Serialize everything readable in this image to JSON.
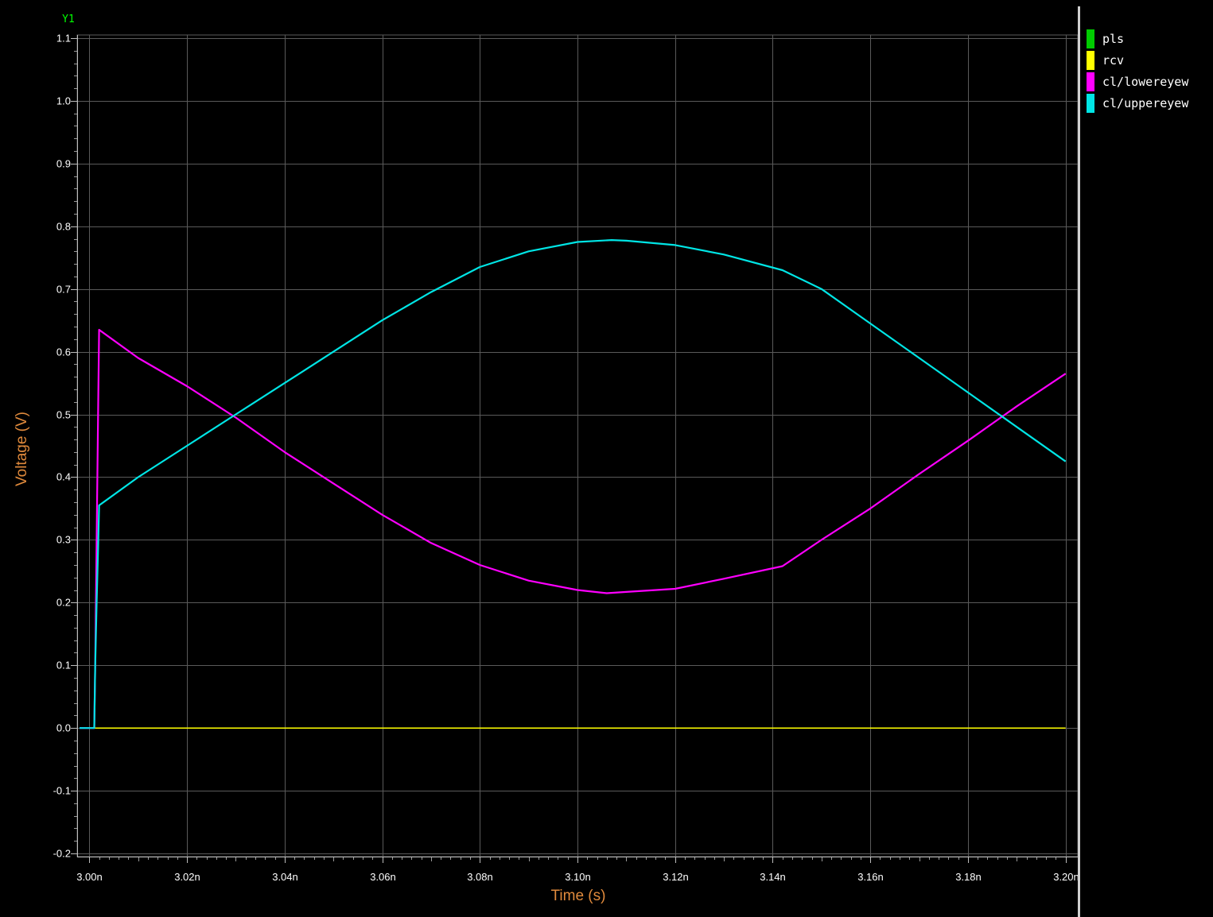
{
  "chart_data": {
    "type": "line",
    "axis_tag": "Y1",
    "xlabel": "Time (s)",
    "ylabel": "Voltage (V)",
    "xlim": [
      2.9975,
      3.2025
    ],
    "ylim": [
      -0.205,
      1.105
    ],
    "x_unit_suffix": "n",
    "x_ticks": [
      3.0,
      3.02,
      3.04,
      3.06,
      3.08,
      3.1,
      3.12,
      3.14,
      3.16,
      3.18,
      3.2
    ],
    "x_tick_labels": [
      "3.00n",
      "3.02n",
      "3.04n",
      "3.06n",
      "3.08n",
      "3.10n",
      "3.12n",
      "3.14n",
      "3.16n",
      "3.18n",
      "3.20n"
    ],
    "y_ticks": [
      -0.2,
      -0.1,
      0.0,
      0.1,
      0.2,
      0.3,
      0.4,
      0.5,
      0.6,
      0.7,
      0.8,
      0.9,
      1.0,
      1.1
    ],
    "y_tick_labels": [
      "-0.2",
      "-0.1",
      "0.0",
      "0.1",
      "0.2",
      "0.3",
      "0.4",
      "0.5",
      "0.6",
      "0.7",
      "0.8",
      "0.9",
      "1.0",
      "1.1"
    ],
    "grid": true,
    "legend_position": "right",
    "series": [
      {
        "name": "pls",
        "color": "#00cc00",
        "x": [],
        "y": []
      },
      {
        "name": "rcv",
        "color": "#ffff00",
        "x": [
          2.998,
          3.2
        ],
        "y": [
          0.0,
          0.0
        ]
      },
      {
        "name": "cl/lowereyew",
        "color": "#ff00ff",
        "x": [
          2.998,
          3.001,
          3.0012,
          3.0015,
          3.0018,
          3.002,
          3.01,
          3.02,
          3.03,
          3.04,
          3.05,
          3.06,
          3.07,
          3.08,
          3.09,
          3.1,
          3.106,
          3.11,
          3.12,
          3.13,
          3.142,
          3.15,
          3.16,
          3.17,
          3.18,
          3.19,
          3.2
        ],
        "y": [
          0.0,
          0.0,
          0.1,
          0.3,
          0.51,
          0.635,
          0.59,
          0.545,
          0.495,
          0.44,
          0.39,
          0.34,
          0.295,
          0.26,
          0.235,
          0.22,
          0.215,
          0.217,
          0.222,
          0.238,
          0.258,
          0.3,
          0.35,
          0.405,
          0.458,
          0.513,
          0.565
        ]
      },
      {
        "name": "cl/uppereyew",
        "color": "#00e5e5",
        "x": [
          2.998,
          3.001,
          3.0012,
          3.0015,
          3.0018,
          3.002,
          3.01,
          3.02,
          3.03,
          3.04,
          3.05,
          3.06,
          3.07,
          3.08,
          3.09,
          3.1,
          3.107,
          3.11,
          3.12,
          3.13,
          3.142,
          3.15,
          3.16,
          3.17,
          3.18,
          3.19,
          3.2
        ],
        "y": [
          0.0,
          0.0,
          0.1,
          0.2,
          0.29,
          0.355,
          0.4,
          0.45,
          0.5,
          0.55,
          0.6,
          0.65,
          0.695,
          0.735,
          0.76,
          0.775,
          0.778,
          0.777,
          0.77,
          0.755,
          0.73,
          0.7,
          0.645,
          0.59,
          0.535,
          0.48,
          0.425
        ]
      }
    ]
  }
}
